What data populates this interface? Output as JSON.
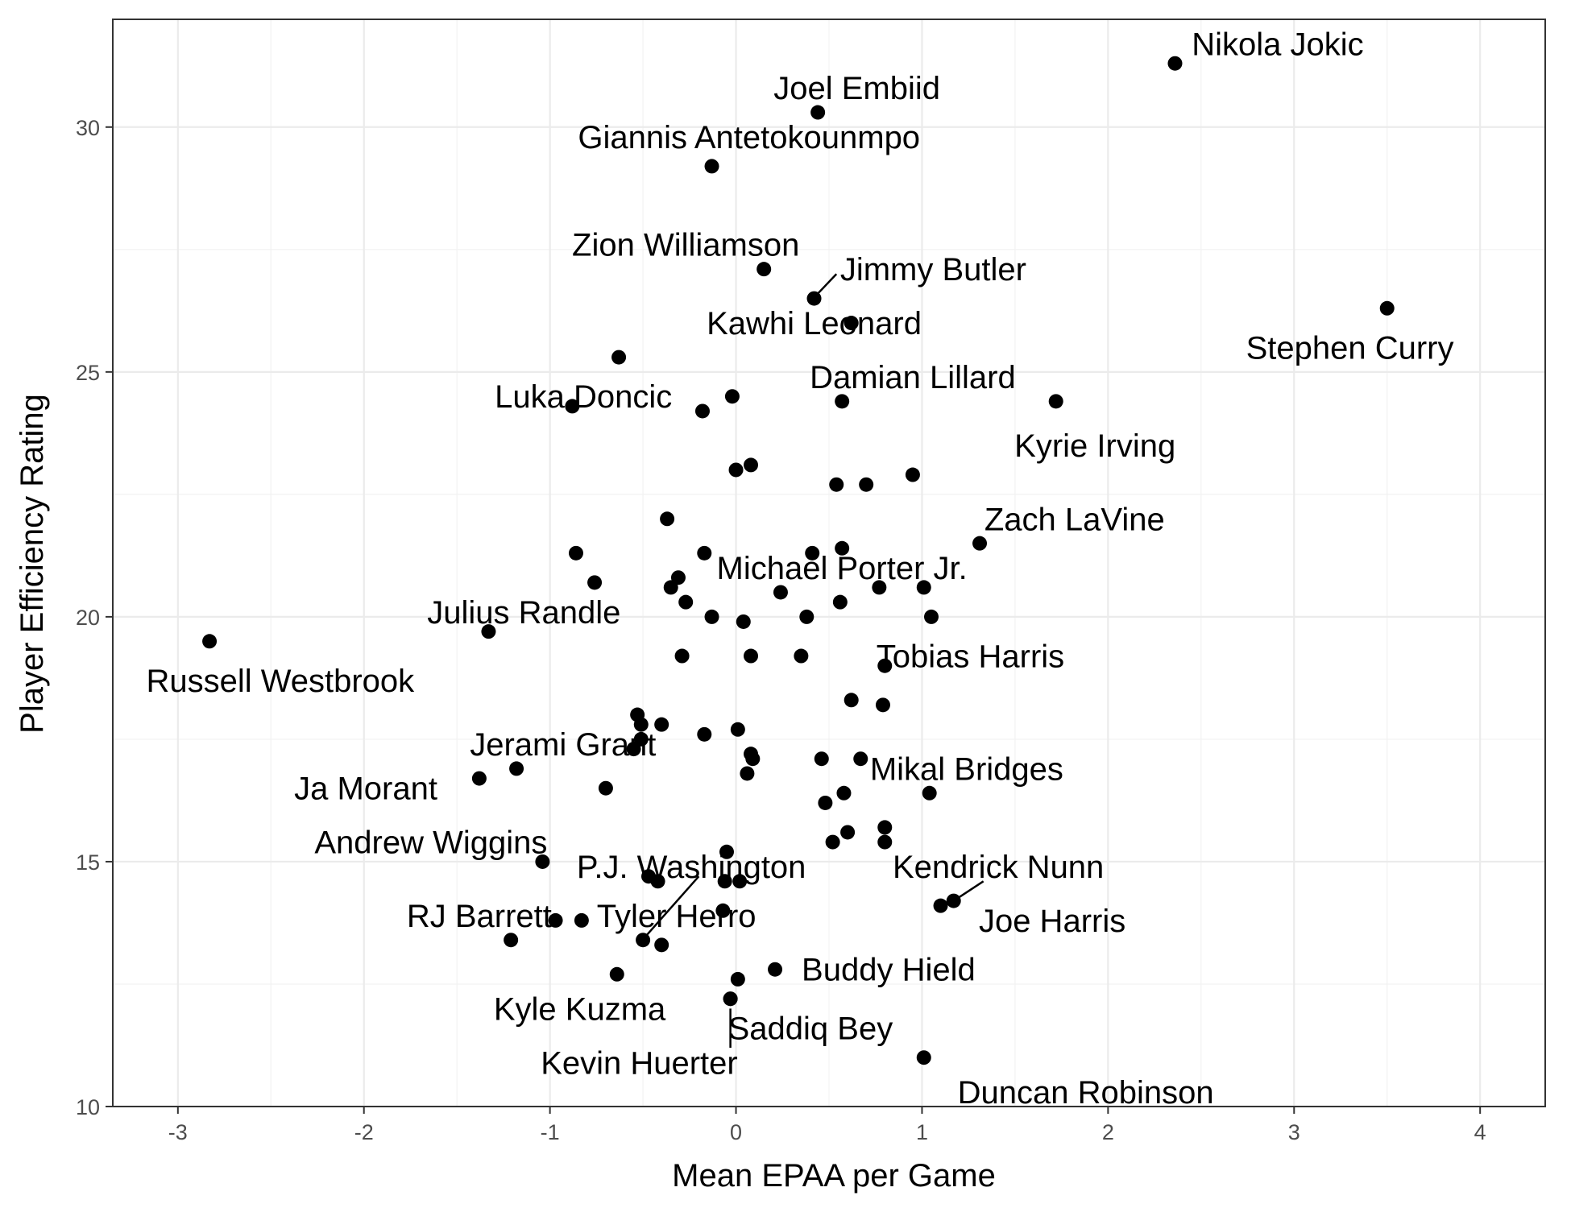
{
  "chart_data": {
    "type": "scatter",
    "xlabel": "Mean EPAA per Game",
    "ylabel": "Player Efficiency Rating",
    "xlim": [
      -3.35,
      4.35
    ],
    "ylim": [
      10,
      32.2
    ],
    "x_ticks": [
      -3,
      -2,
      -1,
      0,
      1,
      2,
      3,
      4
    ],
    "x_tick_labels": [
      "-3",
      "-2",
      "-1",
      "0",
      "1",
      "2",
      "3",
      "4"
    ],
    "y_ticks": [
      10,
      15,
      20,
      25,
      30
    ],
    "y_tick_labels": [
      "10",
      "15",
      "20",
      "25",
      "30"
    ],
    "grid": true,
    "labeled_points": [
      {
        "name": "Nikola Jokic",
        "x": 2.36,
        "y": 31.3,
        "lx": 2.45,
        "ly": 31.7,
        "anchor": "start"
      },
      {
        "name": "Joel Embiid",
        "x": 0.44,
        "y": 30.3,
        "lx": 0.65,
        "ly": 30.8,
        "anchor": "middle"
      },
      {
        "name": "Giannis Antetokounmpo",
        "x": -0.13,
        "y": 29.2,
        "lx": 0.07,
        "ly": 29.8,
        "anchor": "middle"
      },
      {
        "name": "Zion Williamson",
        "x": 0.15,
        "y": 27.1,
        "lx": -0.27,
        "ly": 27.6,
        "anchor": "middle"
      },
      {
        "name": "Jimmy Butler",
        "x": 0.42,
        "y": 26.5,
        "lx": 0.56,
        "ly": 27.1,
        "anchor": "start",
        "leader": [
          0.44,
          26.6,
          0.54,
          27.0
        ]
      },
      {
        "name": "Kawhi Leonard",
        "x": 0.62,
        "y": 26.0,
        "lx": 0.42,
        "ly": 26.0,
        "anchor": "middle"
      },
      {
        "name": "Stephen Curry",
        "x": 3.5,
        "y": 26.3,
        "lx": 3.3,
        "ly": 25.5,
        "anchor": "middle"
      },
      {
        "name": "Damian Lillard",
        "x": 0.57,
        "y": 24.4,
        "lx": 0.95,
        "ly": 24.9,
        "anchor": "middle"
      },
      {
        "name": "Luka Doncic",
        "x": -0.88,
        "y": 24.3,
        "lx": -0.82,
        "ly": 24.5,
        "anchor": "middle"
      },
      {
        "name": "Kyrie Irving",
        "x": 1.72,
        "y": 24.4,
        "lx": 1.93,
        "ly": 23.5,
        "anchor": "middle"
      },
      {
        "name": "Zach LaVine",
        "x": 1.31,
        "y": 21.5,
        "lx": 1.82,
        "ly": 22.0,
        "anchor": "middle"
      },
      {
        "name": "Michael Porter Jr.",
        "x": 0.41,
        "y": 21.3,
        "lx": 0.57,
        "ly": 21.0,
        "anchor": "middle"
      },
      {
        "name": "Julius Randle",
        "x": -1.33,
        "y": 19.7,
        "lx": -1.14,
        "ly": 20.1,
        "anchor": "middle"
      },
      {
        "name": "Russell Westbrook",
        "x": -2.83,
        "y": 19.5,
        "lx": -2.45,
        "ly": 18.7,
        "anchor": "middle"
      },
      {
        "name": "Tobias Harris",
        "x": 0.8,
        "y": 19.0,
        "lx": 1.26,
        "ly": 19.2,
        "anchor": "middle"
      },
      {
        "name": "Jerami Grant",
        "x": -0.55,
        "y": 17.3,
        "lx": -0.93,
        "ly": 17.4,
        "anchor": "middle"
      },
      {
        "name": "Mikal Bridges",
        "x": 0.67,
        "y": 17.1,
        "lx": 1.24,
        "ly": 16.9,
        "anchor": "middle"
      },
      {
        "name": "Ja Morant",
        "x": -1.38,
        "y": 16.7,
        "lx": -1.99,
        "ly": 16.5,
        "anchor": "middle"
      },
      {
        "name": "Andrew Wiggins",
        "x": -1.04,
        "y": 15.0,
        "lx": -1.64,
        "ly": 15.4,
        "anchor": "middle"
      },
      {
        "name": "P.J. Washington",
        "x": -0.5,
        "y": 13.4,
        "lx": -0.24,
        "ly": 14.9,
        "anchor": "middle",
        "leader": [
          -0.48,
          13.5,
          -0.2,
          14.7
        ]
      },
      {
        "name": "Kendrick Nunn",
        "x": 1.1,
        "y": 14.1,
        "lx": 1.41,
        "ly": 14.9,
        "anchor": "middle"
      },
      {
        "name": "Joe Harris",
        "x": 1.17,
        "y": 14.2,
        "lx": 1.7,
        "ly": 13.8,
        "anchor": "middle",
        "leader": [
          1.19,
          14.25,
          1.33,
          14.6
        ]
      },
      {
        "name": "RJ Barrett",
        "x": -0.97,
        "y": 13.8,
        "lx": -1.38,
        "ly": 13.9,
        "anchor": "middle"
      },
      {
        "name": "Tyler Herro",
        "x": -0.83,
        "y": 13.8,
        "lx": -0.32,
        "ly": 13.9,
        "anchor": "middle"
      },
      {
        "name": "Buddy Hield",
        "x": 0.21,
        "y": 12.8,
        "lx": 0.82,
        "ly": 12.8,
        "anchor": "middle"
      },
      {
        "name": "Kyle Kuzma",
        "x": -0.64,
        "y": 12.7,
        "lx": -0.84,
        "ly": 12.0,
        "anchor": "middle"
      },
      {
        "name": "Saddiq Bey",
        "x": -0.03,
        "y": 12.2,
        "lx": 0.4,
        "ly": 11.6,
        "anchor": "middle"
      },
      {
        "name": "Kevin Huerter",
        "x": -0.03,
        "y": 12.2,
        "lx": -0.52,
        "ly": 10.9,
        "anchor": "middle",
        "leader": [
          -0.03,
          12.0,
          -0.03,
          11.2
        ]
      },
      {
        "name": "Duncan Robinson",
        "x": 1.01,
        "y": 11.0,
        "lx": 1.88,
        "ly": 10.3,
        "anchor": "middle"
      }
    ],
    "points": [
      [
        -0.63,
        25.3
      ],
      [
        -0.02,
        24.5
      ],
      [
        -0.18,
        24.2
      ],
      [
        0.0,
        23.0
      ],
      [
        0.08,
        23.1
      ],
      [
        0.54,
        22.7
      ],
      [
        0.7,
        22.7
      ],
      [
        0.95,
        22.9
      ],
      [
        -0.37,
        22.0
      ],
      [
        -0.86,
        21.3
      ],
      [
        -0.17,
        21.3
      ],
      [
        0.57,
        21.4
      ],
      [
        -0.76,
        20.7
      ],
      [
        -0.35,
        20.6
      ],
      [
        -0.31,
        20.8
      ],
      [
        0.24,
        20.5
      ],
      [
        0.77,
        20.6
      ],
      [
        1.01,
        20.6
      ],
      [
        -0.27,
        20.3
      ],
      [
        0.56,
        20.3
      ],
      [
        -0.13,
        20.0
      ],
      [
        0.04,
        19.9
      ],
      [
        0.38,
        20.0
      ],
      [
        1.05,
        20.0
      ],
      [
        -0.29,
        19.2
      ],
      [
        0.08,
        19.2
      ],
      [
        0.35,
        19.2
      ],
      [
        0.62,
        18.3
      ],
      [
        0.79,
        18.2
      ],
      [
        -0.53,
        18.0
      ],
      [
        -0.51,
        17.8
      ],
      [
        -0.51,
        17.5
      ],
      [
        -0.4,
        17.8
      ],
      [
        -0.17,
        17.6
      ],
      [
        0.01,
        17.7
      ],
      [
        0.08,
        17.2
      ],
      [
        0.09,
        17.1
      ],
      [
        0.46,
        17.1
      ],
      [
        -1.18,
        16.9
      ],
      [
        0.06,
        16.8
      ],
      [
        -0.7,
        16.5
      ],
      [
        0.58,
        16.4
      ],
      [
        1.04,
        16.4
      ],
      [
        0.48,
        16.2
      ],
      [
        0.8,
        15.7
      ],
      [
        0.6,
        15.6
      ],
      [
        0.52,
        15.4
      ],
      [
        0.8,
        15.4
      ],
      [
        -0.05,
        15.2
      ],
      [
        -0.47,
        14.7
      ],
      [
        -0.42,
        14.6
      ],
      [
        -0.06,
        14.6
      ],
      [
        0.02,
        14.6
      ],
      [
        -0.07,
        14.0
      ],
      [
        -1.21,
        13.4
      ],
      [
        -0.4,
        13.3
      ],
      [
        0.01,
        12.6
      ]
    ]
  }
}
